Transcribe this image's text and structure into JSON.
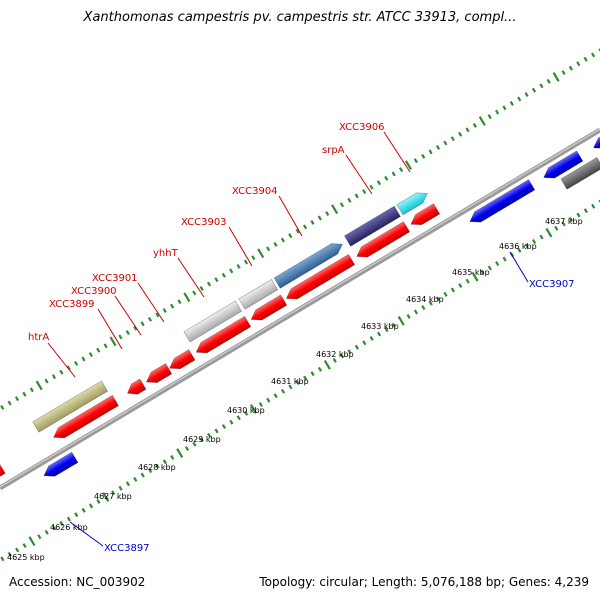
{
  "title": "Xanthomonas campestris pv. campestris str. ATCC 33913, compl...",
  "footer": {
    "accession": "Accession: NC_003902",
    "summary": "Topology: circular; Length: 5,076,188 bp; Genes: 4,239"
  },
  "scale_labels": [
    "4625 kbp",
    "4626 kbp",
    "4627 kbp",
    "4628 kbp",
    "4629 kbp",
    "4630 kbp",
    "4631 kbp",
    "4632 kbp",
    "4633 kbp",
    "4634 kbp",
    "4635 kbp",
    "4636 kbp",
    "4637 kbp"
  ],
  "gene_labels_upper": [
    "htrA",
    "XCC3899",
    "XCC3900",
    "XCC3901",
    "yhhT",
    "XCC3903",
    "XCC3904",
    "srpA",
    "XCC3906"
  ],
  "gene_labels_lower": [
    "XCC3897",
    "XCC3907"
  ],
  "colors": {
    "cds": "#ff0000",
    "backbone": "#999999",
    "tick": "#2e8b2e",
    "label_red": "#cc0000",
    "label_blue": "#0000cc",
    "reverse_gene": "#0000ee",
    "htrA": "#b8b478",
    "light_gray": "#c8c8c8",
    "steel_blue": "#4a7db0",
    "dark_slate": "#3e3a80",
    "cyan": "#22e0ee",
    "dark_gray": "#666666"
  }
}
